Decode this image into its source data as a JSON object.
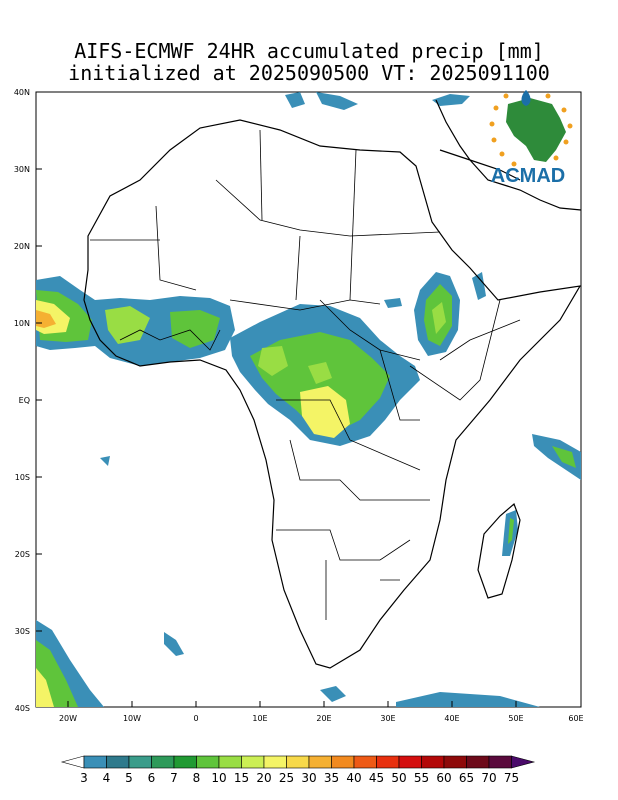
{
  "title": {
    "line1": "AIFS-ECMWF 24HR accumulated precip [mm]",
    "line2": "initialized at 2025090500 VT: 2025091100"
  },
  "logo": {
    "text": "ACMAD",
    "icon": "africa-map-logo"
  },
  "axes": {
    "lat_labels": [
      "40N",
      "30N",
      "20N",
      "10N",
      "EQ",
      "10S",
      "20S",
      "30S",
      "40S"
    ],
    "lon_labels": [
      "20W",
      "10W",
      "0",
      "10E",
      "20E",
      "30E",
      "40E",
      "50E",
      "60E"
    ],
    "lon_range": [
      -25,
      60
    ],
    "lat_range": [
      -40,
      40
    ]
  },
  "colorbar": {
    "labels": [
      "3",
      "4",
      "5",
      "6",
      "7",
      "8",
      "10",
      "15",
      "20",
      "25",
      "30",
      "35",
      "40",
      "45",
      "50",
      "55",
      "60",
      "65",
      "70",
      "75"
    ],
    "colors": [
      "#3a8fb7",
      "#2f7a8c",
      "#3a9c8a",
      "#2e9a5a",
      "#219a33",
      "#5fc43b",
      "#99dd44",
      "#ccef55",
      "#f4f466",
      "#f7d94a",
      "#f5b032",
      "#f28a1f",
      "#ee5a16",
      "#e8300f",
      "#d40f0f",
      "#b30808",
      "#8e0a0a",
      "#6d0a1a",
      "#5a0a3c",
      "#4a0a6a"
    ]
  },
  "colors": {
    "precip_low": "#3a8fb7",
    "precip_mid": "#5fc43b",
    "precip_high": "#f4f466",
    "logo_blue": "#1b6fa8",
    "logo_green": "#2e8b3a",
    "logo_orange": "#f0a020"
  }
}
